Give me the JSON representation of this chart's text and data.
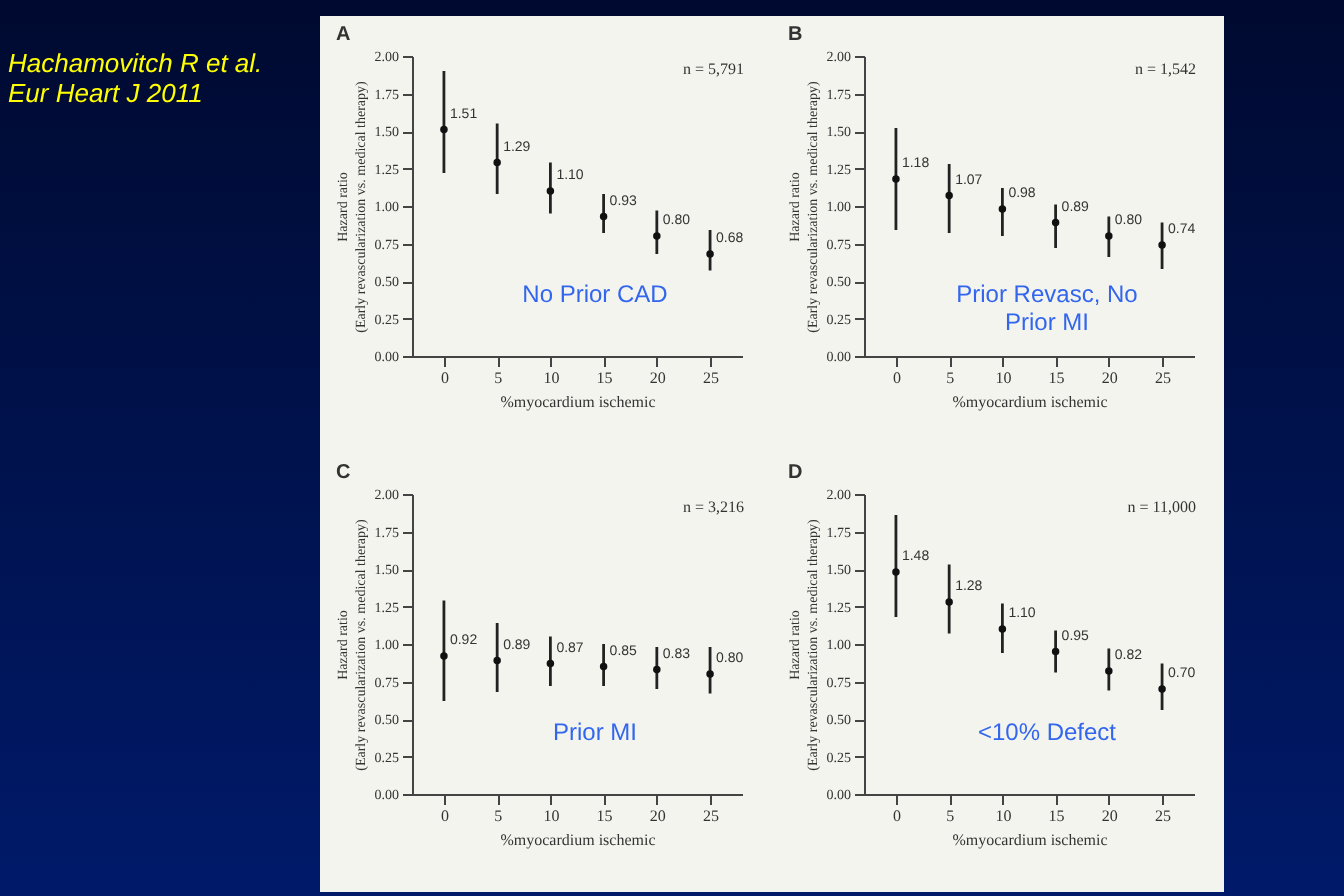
{
  "chart_data": [
    {
      "type": "other",
      "annotations": [
        "Hachamovitch R et al.",
        "Eur Heart J 2011"
      ]
    },
    {
      "type": "scatter",
      "title": "A",
      "xlabel": "%myocardium ischemic",
      "ylabel": "Hazard ratio\n(Early revascularization vs. medical therapy)",
      "x": [
        0,
        5,
        10,
        15,
        20,
        25
      ],
      "values": [
        1.51,
        1.29,
        1.1,
        0.93,
        0.8,
        0.68
      ],
      "data_labels": true,
      "value_labels": [
        "1.51",
        "1.29",
        "1.10",
        "0.93",
        "0.80",
        "0.68"
      ],
      "errors": [
        [
          1.22,
          1.9
        ],
        [
          1.08,
          1.55
        ],
        [
          0.95,
          1.29
        ],
        [
          0.82,
          1.08
        ],
        [
          0.68,
          0.97
        ],
        [
          0.57,
          0.84
        ]
      ],
      "marker": "circle",
      "xlim": [
        -3,
        28
      ],
      "xticks": [
        0,
        5,
        10,
        15,
        20,
        25
      ],
      "ylim": [
        0,
        2
      ],
      "yticks": [
        {
          "value": 0,
          "label": "0.00"
        },
        {
          "value": 0.25,
          "label": "0.25"
        },
        {
          "value": 0.5,
          "label": "0.50"
        },
        {
          "value": 0.75,
          "label": "0.75"
        },
        {
          "value": 1,
          "label": "1.00"
        },
        {
          "value": 1.25,
          "label": "1.25"
        },
        {
          "value": 1.5,
          "label": "1.50"
        },
        {
          "value": 1.75,
          "label": "1.75"
        },
        {
          "value": 2,
          "label": "2.00"
        }
      ],
      "annotations": [
        "n = 5,791",
        "No Prior CAD"
      ]
    },
    {
      "type": "scatter",
      "title": "B",
      "xlabel": "%myocardium ischemic",
      "ylabel": "Hazard ratio\n(Early revascularization vs. medical therapy)",
      "x": [
        0,
        5,
        10,
        15,
        20,
        25
      ],
      "values": [
        1.18,
        1.07,
        0.98,
        0.89,
        0.8,
        0.74
      ],
      "data_labels": true,
      "value_labels": [
        "1.18",
        "1.07",
        "0.98",
        "0.89",
        "0.80",
        "0.74"
      ],
      "errors": [
        [
          0.84,
          1.52
        ],
        [
          0.82,
          1.28
        ],
        [
          0.8,
          1.12
        ],
        [
          0.72,
          1.01
        ],
        [
          0.66,
          0.93
        ],
        [
          0.58,
          0.89
        ]
      ],
      "marker": "circle",
      "xlim": [
        -3,
        28
      ],
      "xticks": [
        0,
        5,
        10,
        15,
        20,
        25
      ],
      "ylim": [
        0,
        2
      ],
      "yticks": [
        {
          "value": 0,
          "label": "0.00"
        },
        {
          "value": 0.25,
          "label": "0.25"
        },
        {
          "value": 0.5,
          "label": "0.50"
        },
        {
          "value": 0.75,
          "label": "0.75"
        },
        {
          "value": 1,
          "label": "1.00"
        },
        {
          "value": 1.25,
          "label": "1.25"
        },
        {
          "value": 1.5,
          "label": "1.50"
        },
        {
          "value": 1.75,
          "label": "1.75"
        },
        {
          "value": 2,
          "label": "2.00"
        }
      ],
      "annotations": [
        "n = 1,542",
        "Prior Revasc, No Prior MI"
      ]
    },
    {
      "type": "scatter",
      "title": "C",
      "xlabel": "%myocardium ischemic",
      "ylabel": "Hazard ratio\n(Early revascularization vs. medical therapy)",
      "x": [
        0,
        5,
        10,
        15,
        20,
        25
      ],
      "values": [
        0.92,
        0.89,
        0.87,
        0.85,
        0.83,
        0.8
      ],
      "data_labels": true,
      "value_labels": [
        "0.92",
        "0.89",
        "0.87",
        "0.85",
        "0.83",
        "0.80"
      ],
      "errors": [
        [
          0.62,
          1.29
        ],
        [
          0.68,
          1.14
        ],
        [
          0.72,
          1.05
        ],
        [
          0.72,
          1.0
        ],
        [
          0.7,
          0.98
        ],
        [
          0.67,
          0.98
        ]
      ],
      "marker": "circle",
      "xlim": [
        -3,
        28
      ],
      "xticks": [
        0,
        5,
        10,
        15,
        20,
        25
      ],
      "ylim": [
        0,
        2
      ],
      "yticks": [
        {
          "value": 0,
          "label": "0.00"
        },
        {
          "value": 0.25,
          "label": "0.25"
        },
        {
          "value": 0.5,
          "label": "0.50"
        },
        {
          "value": 0.75,
          "label": "0.75"
        },
        {
          "value": 1,
          "label": "1.00"
        },
        {
          "value": 1.25,
          "label": "1.25"
        },
        {
          "value": 1.5,
          "label": "1.50"
        },
        {
          "value": 1.75,
          "label": "1.75"
        },
        {
          "value": 2,
          "label": "2.00"
        }
      ],
      "annotations": [
        "n = 3,216",
        "Prior MI"
      ]
    },
    {
      "type": "scatter",
      "title": "D",
      "xlabel": "%myocardium ischemic",
      "ylabel": "Hazard ratio\n(Early revascularization vs. medical therapy)",
      "x": [
        0,
        5,
        10,
        15,
        20,
        25
      ],
      "values": [
        1.48,
        1.28,
        1.1,
        0.95,
        0.82,
        0.7
      ],
      "data_labels": true,
      "value_labels": [
        "1.48",
        "1.28",
        "1.10",
        "0.95",
        "0.82",
        "0.70"
      ],
      "errors": [
        [
          1.18,
          1.86
        ],
        [
          1.07,
          1.53
        ],
        [
          0.94,
          1.27
        ],
        [
          0.81,
          1.09
        ],
        [
          0.69,
          0.97
        ],
        [
          0.56,
          0.87
        ]
      ],
      "marker": "circle",
      "xlim": [
        -3,
        28
      ],
      "xticks": [
        0,
        5,
        10,
        15,
        20,
        25
      ],
      "ylim": [
        0,
        2
      ],
      "yticks": [
        {
          "value": 0,
          "label": "0.00"
        },
        {
          "value": 0.25,
          "label": "0.25"
        },
        {
          "value": 0.5,
          "label": "0.50"
        },
        {
          "value": 0.75,
          "label": "0.75"
        },
        {
          "value": 1,
          "label": "1.00"
        },
        {
          "value": 1.25,
          "label": "1.25"
        },
        {
          "value": 1.5,
          "label": "1.50"
        },
        {
          "value": 1.75,
          "label": "1.75"
        },
        {
          "value": 2,
          "label": "2.00"
        }
      ],
      "annotations": [
        "n = 11,000",
        "<10% Defect"
      ]
    }
  ]
}
